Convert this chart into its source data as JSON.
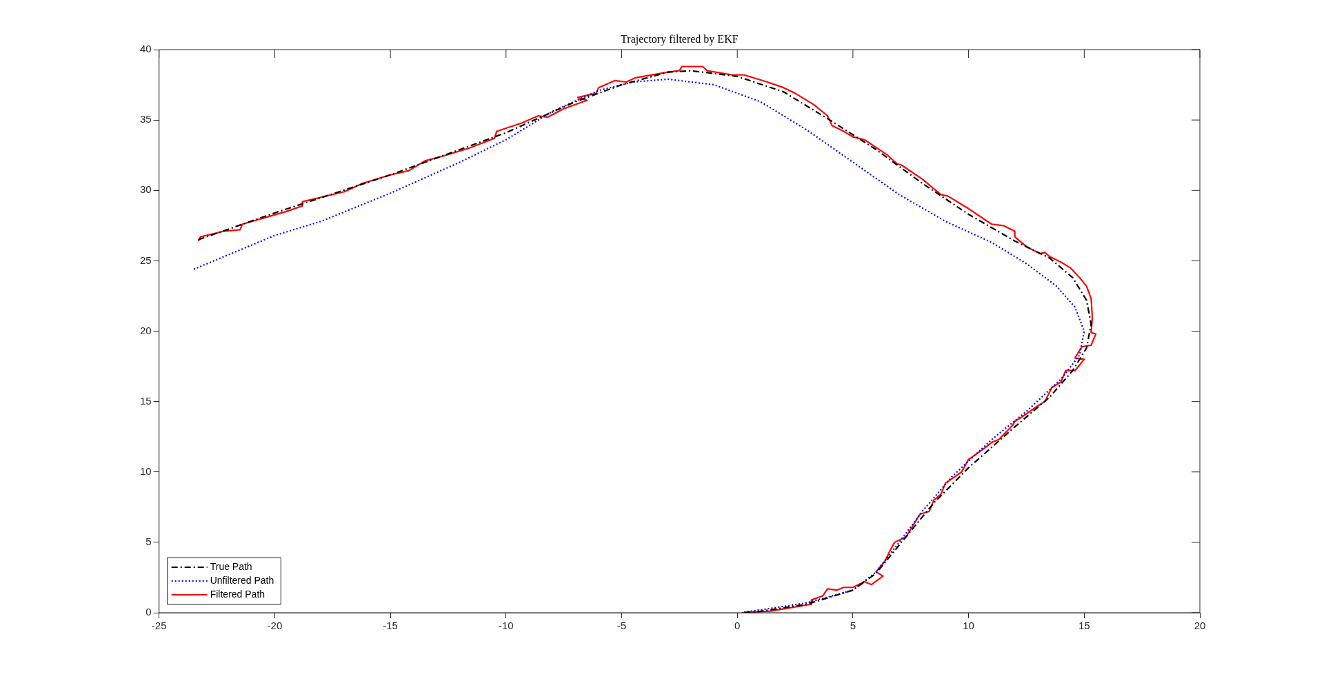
{
  "chart_data": {
    "type": "line",
    "title": "Trajectory filtered by EKF",
    "xlim": [
      -25,
      20
    ],
    "xticks": [
      -25,
      -20,
      -15,
      -10,
      -5,
      0,
      5,
      10,
      15,
      20
    ],
    "ylim": [
      0,
      40
    ],
    "yticks": [
      0,
      5,
      10,
      15,
      20,
      25,
      30,
      35,
      40
    ],
    "grid": false,
    "legend": "bottom left",
    "marker": "none",
    "series": [
      {
        "name": "True Path",
        "color": "#000000",
        "line_style": "dashed",
        "x": [
          -23.3,
          -20,
          -15,
          -10,
          -7,
          -5,
          -3,
          -2,
          0,
          2,
          4,
          6,
          8,
          10,
          12,
          13.5,
          14.5,
          15.1,
          15.3,
          15.1,
          14.5,
          13.5,
          12,
          10,
          8.5,
          7,
          6,
          5,
          3,
          1,
          0.2
        ],
        "values": [
          26.5,
          28.4,
          31.1,
          34.1,
          36.3,
          37.5,
          38.4,
          38.5,
          38.1,
          37,
          35,
          32.9,
          30.5,
          28.3,
          26.4,
          25.2,
          23.8,
          22.2,
          20.5,
          18.8,
          17.2,
          15.3,
          13.2,
          10.3,
          7.8,
          4.8,
          2.8,
          1.6,
          0.6,
          0.1,
          0
        ]
      },
      {
        "name": "Unfiltered Path",
        "color": "#0000ff",
        "line_style": "dotted",
        "x": [
          -23.5,
          -20,
          -18,
          -15,
          -12,
          -10,
          -8,
          -6,
          -4.5,
          -3,
          -1,
          1,
          3,
          5,
          7,
          9,
          11,
          12.5,
          13.8,
          14.6,
          15,
          14.8,
          14,
          12.5,
          11,
          9.3,
          8,
          7,
          6,
          5,
          3,
          1,
          0.3
        ],
        "values": [
          24.4,
          26.8,
          27.8,
          29.8,
          32,
          33.6,
          35.6,
          37.1,
          37.7,
          37.9,
          37.5,
          36.3,
          34.3,
          32,
          29.7,
          27.8,
          26.3,
          24.8,
          23.2,
          21.7,
          20,
          18.3,
          16.6,
          14.3,
          12.3,
          9.7,
          7.2,
          5,
          2.9,
          1.6,
          0.7,
          0.2,
          0.05
        ]
      },
      {
        "name": "Filtered Path",
        "color": "#ff0000",
        "line_style": "solid",
        "x": [
          -23.3,
          -23.2,
          -22.2,
          -21.5,
          -21.4,
          -19.5,
          -18.8,
          -18.8,
          -17,
          -16.2,
          -15,
          -14.2,
          -13.5,
          -12.6,
          -11.6,
          -10.5,
          -10.4,
          -9.3,
          -8.6,
          -8.2,
          -7.5,
          -6.5,
          -6.9,
          -6.1,
          -6,
          -5.3,
          -4.8,
          -4.4,
          -3,
          -2.5,
          -2.4,
          -1.5,
          -1.3,
          -0.2,
          0.3,
          1.3,
          2,
          2.5,
          3.3,
          3.9,
          4.1,
          4.6,
          5,
          5.5,
          6.5,
          6.9,
          7.1,
          8,
          8.8,
          9.1,
          10,
          11,
          11.5,
          12,
          12,
          12.5,
          13.1,
          13.3,
          13.5,
          14,
          14.4,
          14.8,
          15.1,
          15.3,
          15.35,
          15.3,
          15.5,
          15.3,
          14.9,
          14.6,
          15,
          14.6,
          14.2,
          14,
          13.6,
          13.3,
          13,
          12.3,
          12,
          11.9,
          11.3,
          11,
          10.7,
          10.1,
          10,
          9.7,
          9,
          8.8,
          8.5,
          8.3,
          7.9,
          7.3,
          6.8,
          6.6,
          6.4,
          6,
          6.3,
          5.8,
          5.5,
          5,
          4.6,
          4.3,
          3.9,
          3.7,
          3.2,
          3.2,
          1.4,
          1.3,
          0.2
        ],
        "values": [
          26.4,
          26.7,
          27.1,
          27.2,
          27.6,
          28.5,
          28.9,
          29.2,
          29.9,
          30.5,
          31.1,
          31.4,
          32.1,
          32.5,
          33,
          33.7,
          34.2,
          34.8,
          35.3,
          35.2,
          35.8,
          36.4,
          36.6,
          36.9,
          37.3,
          37.8,
          37.7,
          38,
          38.4,
          38.5,
          38.8,
          38.8,
          38.5,
          38.2,
          38.2,
          37.7,
          37.3,
          36.9,
          36.1,
          35.3,
          34.6,
          34.2,
          33.8,
          33.6,
          32.5,
          31.9,
          31.8,
          30.8,
          29.7,
          29.6,
          28.7,
          27.6,
          27.5,
          27.1,
          26.7,
          26,
          25.5,
          25.6,
          25.3,
          24.9,
          24.5,
          23.8,
          23.2,
          22.3,
          21,
          19.9,
          19.8,
          19,
          18.9,
          18.1,
          18,
          17.2,
          17.2,
          16.4,
          16,
          15,
          14.7,
          13.9,
          13.6,
          13.3,
          12.3,
          12.1,
          11.7,
          11,
          10.9,
          10,
          9.2,
          8.4,
          8,
          7.2,
          7,
          5.4,
          5,
          4.4,
          3.7,
          2.9,
          2.6,
          2,
          2.2,
          1.8,
          1.8,
          1.6,
          1.7,
          1.2,
          0.9,
          0.6,
          0.1,
          0.1,
          0
        ]
      }
    ]
  }
}
